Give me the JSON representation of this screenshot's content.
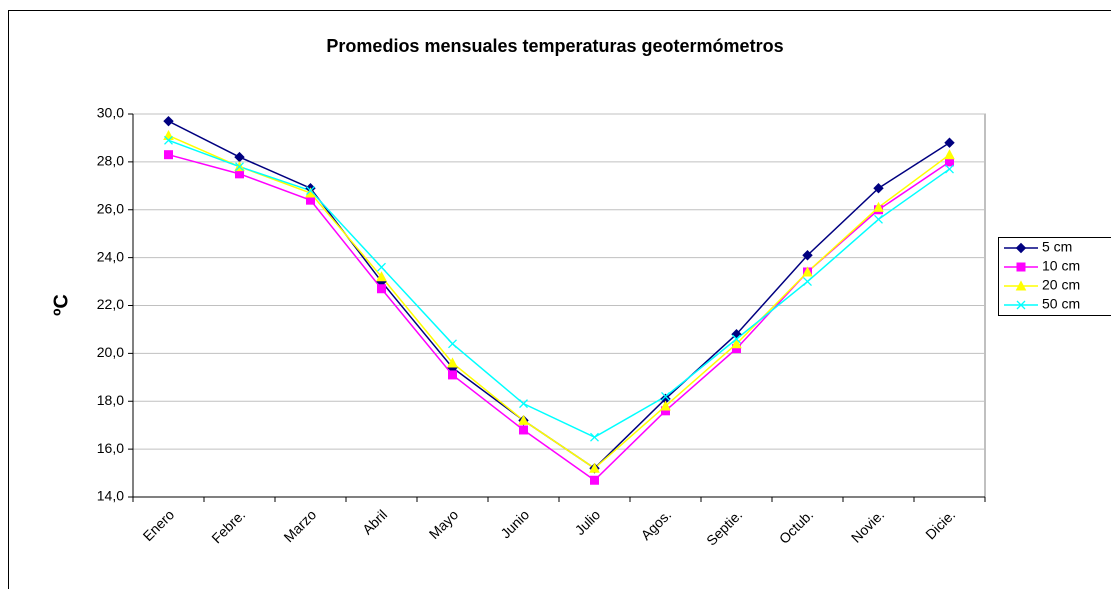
{
  "chart_data": {
    "type": "line",
    "title": "Promedios mensuales temperaturas geotermómetros",
    "y_label": "ºC",
    "categories": [
      "Enero",
      "Febre.",
      "Marzo",
      "Abril",
      "Mayo",
      "Junio",
      "Julio",
      "Agos.",
      "Septie.",
      "Octub.",
      "Novie.",
      "Dicie."
    ],
    "series": [
      {
        "name": "5 cm",
        "color": "#000080",
        "marker": "diamond",
        "values": [
          29.7,
          28.2,
          26.9,
          23.0,
          19.4,
          17.2,
          15.2,
          18.1,
          20.8,
          24.1,
          26.9,
          28.8
        ]
      },
      {
        "name": "10 cm",
        "color": "#ff00ff",
        "marker": "square",
        "values": [
          28.3,
          27.5,
          26.4,
          22.7,
          19.1,
          16.8,
          14.7,
          17.6,
          20.2,
          23.4,
          26.0,
          28.0
        ]
      },
      {
        "name": "20 cm",
        "color": "#ffff00",
        "marker": "triangle",
        "values": [
          29.1,
          27.8,
          26.7,
          23.2,
          19.6,
          17.2,
          15.2,
          17.8,
          20.4,
          23.4,
          26.1,
          28.3
        ]
      },
      {
        "name": "50 cm",
        "color": "#00ffff",
        "marker": "x",
        "values": [
          28.9,
          27.8,
          26.8,
          23.6,
          20.4,
          17.9,
          16.5,
          18.2,
          20.6,
          23.0,
          25.6,
          27.7
        ]
      }
    ],
    "ylim": [
      14,
      30
    ],
    "yticks": [
      {
        "value": 14,
        "label": "14,0"
      },
      {
        "value": 16,
        "label": "16,0"
      },
      {
        "value": 18,
        "label": "18,0"
      },
      {
        "value": 20,
        "label": "20,0"
      },
      {
        "value": 22,
        "label": "22,0"
      },
      {
        "value": 24,
        "label": "24,0"
      },
      {
        "value": 26,
        "label": "26,0"
      },
      {
        "value": 28,
        "label": "28,0"
      },
      {
        "value": 30,
        "label": "30,0"
      }
    ],
    "grid": true,
    "legend": "right"
  }
}
